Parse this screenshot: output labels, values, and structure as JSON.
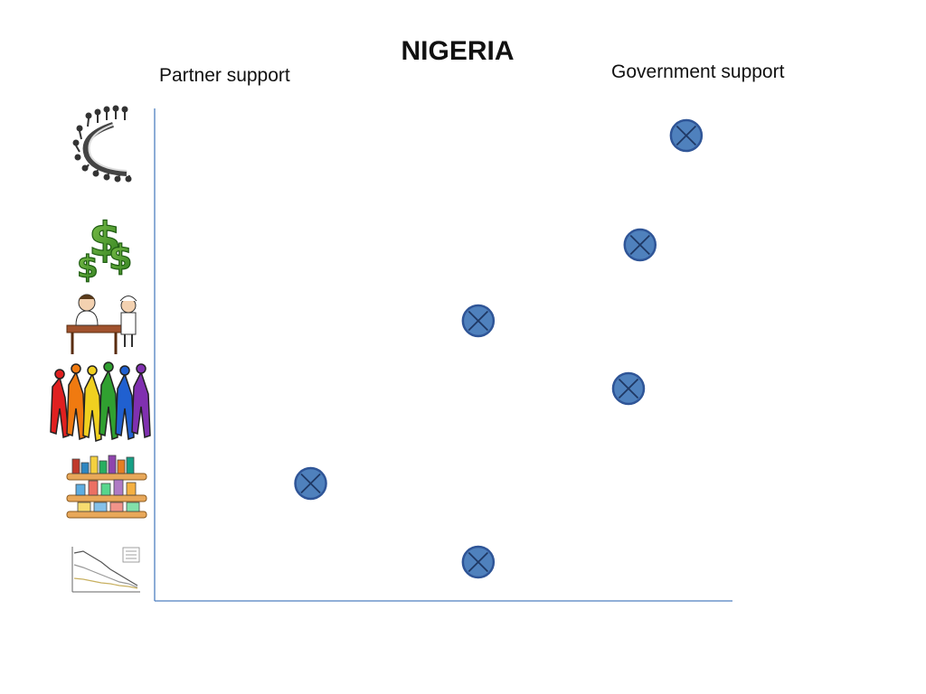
{
  "header": {
    "title": "NIGERIA",
    "left_label": "Partner support",
    "right_label": "Government support"
  },
  "chart_data": {
    "type": "scatter",
    "title": "NIGERIA",
    "xlabel": "",
    "ylabel": "",
    "x_axis_ends": [
      "Partner support",
      "Government support"
    ],
    "xlim": [
      0,
      1
    ],
    "grid": false,
    "legend": "none",
    "categories": [
      "governance",
      "financing",
      "health-workforce",
      "community",
      "commodities",
      "data"
    ],
    "row_icons": [
      "meeting-table-icon",
      "dollar-signs-icon",
      "doctor-nurse-icon",
      "community-people-icon",
      "medicine-shelves-icon",
      "data-chart-icon"
    ],
    "values": [
      0.92,
      0.84,
      0.56,
      0.82,
      0.27,
      0.56
    ],
    "marker_color": "#4f81bd",
    "axis_color": "#4f7fc0"
  }
}
